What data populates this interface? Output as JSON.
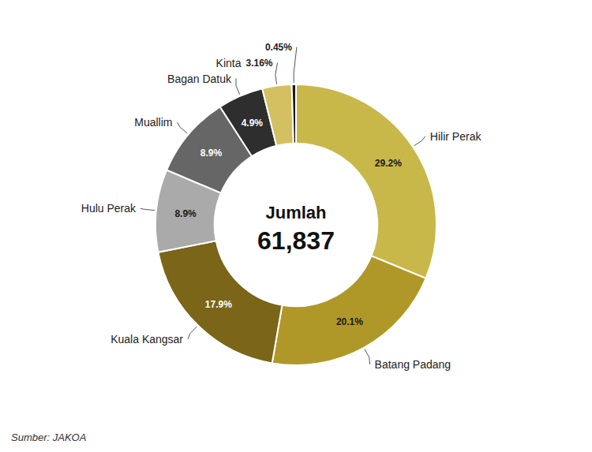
{
  "chart_data": {
    "type": "donut",
    "categories": [
      "Hilir Perak",
      "Batang Padang",
      "Kuala Kangsar",
      "Hulu Perak",
      "Muallim",
      "Bagan Datuk",
      "Kinta",
      null
    ],
    "values": [
      29.2,
      20.1,
      17.9,
      8.9,
      8.9,
      4.9,
      3.16,
      0.45
    ],
    "value_labels": [
      "29.2%",
      "20.1%",
      "17.9%",
      "8.9%",
      "8.9%",
      "4.9%",
      "3.16%",
      "0.45%"
    ],
    "colors": [
      "#C8B84A",
      "#B09828",
      "#7A6518",
      "#AAAAAA",
      "#666666",
      "#2E2E2E",
      "#D4C060",
      "#1A1A1A"
    ],
    "data_labels": true,
    "annotations": [
      "Jumlah",
      "61,837"
    ],
    "source": "Sumber: JAKOA"
  }
}
